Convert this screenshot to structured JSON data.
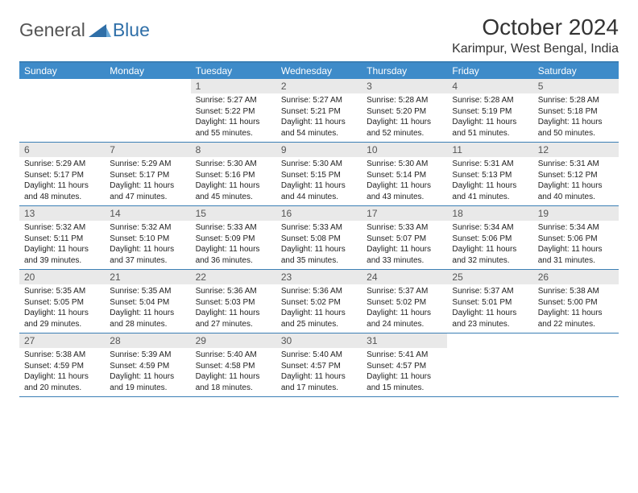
{
  "brand": {
    "general": "General",
    "blue": "Blue"
  },
  "title": "October 2024",
  "location": "Karimpur, West Bengal, India",
  "colors": {
    "header_bar": "#3e8bc9",
    "border": "#3b7fb5",
    "daynum_bg": "#e9e9e9",
    "text": "#222222",
    "brand_blue": "#2f6fa8"
  },
  "daysOfWeek": [
    "Sunday",
    "Monday",
    "Tuesday",
    "Wednesday",
    "Thursday",
    "Friday",
    "Saturday"
  ],
  "weeks": [
    [
      null,
      null,
      {
        "n": "1",
        "sr": "5:27 AM",
        "ss": "5:22 PM",
        "dl": "11 hours and 55 minutes."
      },
      {
        "n": "2",
        "sr": "5:27 AM",
        "ss": "5:21 PM",
        "dl": "11 hours and 54 minutes."
      },
      {
        "n": "3",
        "sr": "5:28 AM",
        "ss": "5:20 PM",
        "dl": "11 hours and 52 minutes."
      },
      {
        "n": "4",
        "sr": "5:28 AM",
        "ss": "5:19 PM",
        "dl": "11 hours and 51 minutes."
      },
      {
        "n": "5",
        "sr": "5:28 AM",
        "ss": "5:18 PM",
        "dl": "11 hours and 50 minutes."
      }
    ],
    [
      {
        "n": "6",
        "sr": "5:29 AM",
        "ss": "5:17 PM",
        "dl": "11 hours and 48 minutes."
      },
      {
        "n": "7",
        "sr": "5:29 AM",
        "ss": "5:17 PM",
        "dl": "11 hours and 47 minutes."
      },
      {
        "n": "8",
        "sr": "5:30 AM",
        "ss": "5:16 PM",
        "dl": "11 hours and 45 minutes."
      },
      {
        "n": "9",
        "sr": "5:30 AM",
        "ss": "5:15 PM",
        "dl": "11 hours and 44 minutes."
      },
      {
        "n": "10",
        "sr": "5:30 AM",
        "ss": "5:14 PM",
        "dl": "11 hours and 43 minutes."
      },
      {
        "n": "11",
        "sr": "5:31 AM",
        "ss": "5:13 PM",
        "dl": "11 hours and 41 minutes."
      },
      {
        "n": "12",
        "sr": "5:31 AM",
        "ss": "5:12 PM",
        "dl": "11 hours and 40 minutes."
      }
    ],
    [
      {
        "n": "13",
        "sr": "5:32 AM",
        "ss": "5:11 PM",
        "dl": "11 hours and 39 minutes."
      },
      {
        "n": "14",
        "sr": "5:32 AM",
        "ss": "5:10 PM",
        "dl": "11 hours and 37 minutes."
      },
      {
        "n": "15",
        "sr": "5:33 AM",
        "ss": "5:09 PM",
        "dl": "11 hours and 36 minutes."
      },
      {
        "n": "16",
        "sr": "5:33 AM",
        "ss": "5:08 PM",
        "dl": "11 hours and 35 minutes."
      },
      {
        "n": "17",
        "sr": "5:33 AM",
        "ss": "5:07 PM",
        "dl": "11 hours and 33 minutes."
      },
      {
        "n": "18",
        "sr": "5:34 AM",
        "ss": "5:06 PM",
        "dl": "11 hours and 32 minutes."
      },
      {
        "n": "19",
        "sr": "5:34 AM",
        "ss": "5:06 PM",
        "dl": "11 hours and 31 minutes."
      }
    ],
    [
      {
        "n": "20",
        "sr": "5:35 AM",
        "ss": "5:05 PM",
        "dl": "11 hours and 29 minutes."
      },
      {
        "n": "21",
        "sr": "5:35 AM",
        "ss": "5:04 PM",
        "dl": "11 hours and 28 minutes."
      },
      {
        "n": "22",
        "sr": "5:36 AM",
        "ss": "5:03 PM",
        "dl": "11 hours and 27 minutes."
      },
      {
        "n": "23",
        "sr": "5:36 AM",
        "ss": "5:02 PM",
        "dl": "11 hours and 25 minutes."
      },
      {
        "n": "24",
        "sr": "5:37 AM",
        "ss": "5:02 PM",
        "dl": "11 hours and 24 minutes."
      },
      {
        "n": "25",
        "sr": "5:37 AM",
        "ss": "5:01 PM",
        "dl": "11 hours and 23 minutes."
      },
      {
        "n": "26",
        "sr": "5:38 AM",
        "ss": "5:00 PM",
        "dl": "11 hours and 22 minutes."
      }
    ],
    [
      {
        "n": "27",
        "sr": "5:38 AM",
        "ss": "4:59 PM",
        "dl": "11 hours and 20 minutes."
      },
      {
        "n": "28",
        "sr": "5:39 AM",
        "ss": "4:59 PM",
        "dl": "11 hours and 19 minutes."
      },
      {
        "n": "29",
        "sr": "5:40 AM",
        "ss": "4:58 PM",
        "dl": "11 hours and 18 minutes."
      },
      {
        "n": "30",
        "sr": "5:40 AM",
        "ss": "4:57 PM",
        "dl": "11 hours and 17 minutes."
      },
      {
        "n": "31",
        "sr": "5:41 AM",
        "ss": "4:57 PM",
        "dl": "11 hours and 15 minutes."
      },
      null,
      null
    ]
  ],
  "labels": {
    "sunrise": "Sunrise:",
    "sunset": "Sunset:",
    "daylight": "Daylight:"
  }
}
